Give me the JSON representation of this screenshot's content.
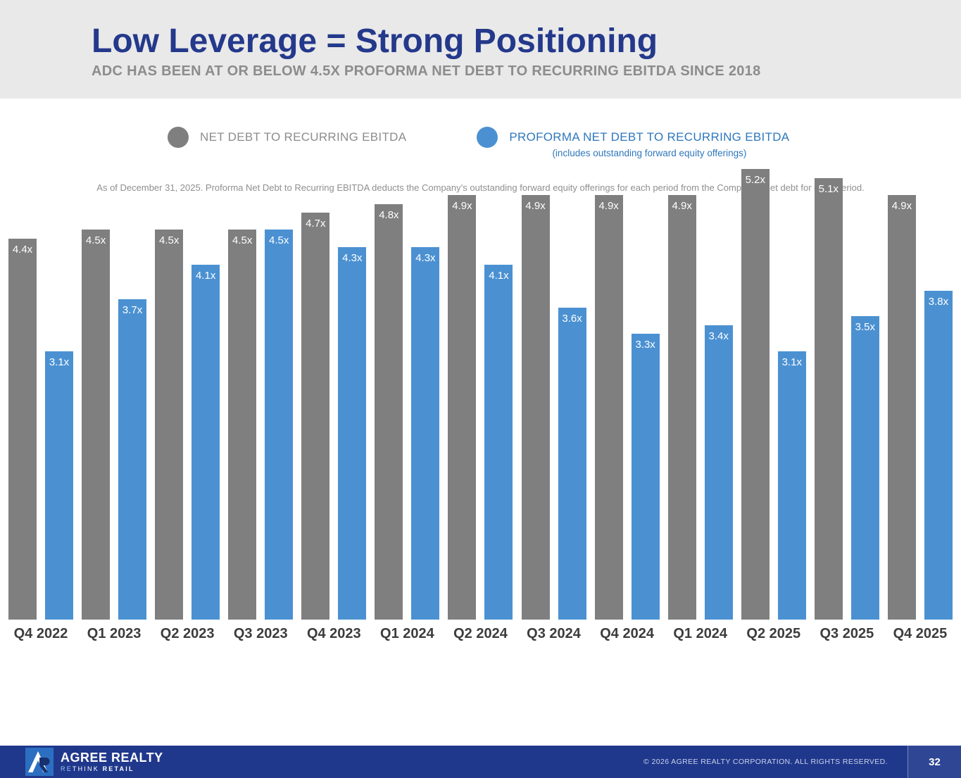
{
  "slide": {
    "title": "Low Leverage = Strong Positioning",
    "subtitle": "ADC HAS BEEN AT OR BELOW 4.5X PROFORMA NET DEBT TO RECURRING EBITDA SINCE 2018"
  },
  "chart_data": {
    "type": "bar",
    "categories": [
      "Q4 2022",
      "Q1 2023",
      "Q2 2023",
      "Q3 2023",
      "Q4 2023",
      "Q1 2024",
      "Q2 2024",
      "Q3 2024",
      "Q4 2024",
      "Q1 2024",
      "Q2 2025",
      "Q3 2025",
      "Q4 2025"
    ],
    "series": [
      {
        "name": "NET DEBT TO RECURRING EBITDA",
        "color": "#7f7f7f",
        "values": [
          4.4,
          4.5,
          4.5,
          4.5,
          4.7,
          4.8,
          4.9,
          4.9,
          4.9,
          4.9,
          5.2,
          5.1,
          4.9
        ],
        "labels": [
          "4.4x",
          "4.5x",
          "4.5x",
          "4.5x",
          "4.7x",
          "4.8x",
          "4.9x",
          "4.9x",
          "4.9x",
          "4.9x",
          "5.2x",
          "5.1x",
          "4.9x"
        ]
      },
      {
        "name": "PROFORMA NET DEBT TO RECURRING EBITDA",
        "color": "#4b91d2",
        "values": [
          3.1,
          3.7,
          4.1,
          4.5,
          4.3,
          4.3,
          4.1,
          3.6,
          3.3,
          3.4,
          3.1,
          3.5,
          3.8
        ],
        "labels": [
          "3.1x",
          "3.7x",
          "4.1x",
          "4.5x",
          "4.3x",
          "4.3x",
          "4.1x",
          "3.6x",
          "3.3x",
          "3.4x",
          "3.1x",
          "3.5x",
          "3.8x"
        ]
      }
    ],
    "ylim": [
      0,
      5.5
    ],
    "grid": false,
    "value_labels": "inside-top",
    "legend_position": "bottom"
  },
  "legend": {
    "gray_label": "NET DEBT TO RECURRING EBITDA",
    "blue_label": "PROFORMA NET DEBT TO RECURRING EBITDA",
    "blue_sublabel": "(includes outstanding forward equity offerings)"
  },
  "footnote": "As of December 31, 2025. Proforma Net Debt to Recurring EBITDA deducts the Company’s outstanding forward equity offerings for each period from the Company’s net debt for each period.",
  "footer": {
    "brand_name": "AGREE REALTY",
    "tagline_re": "RE",
    "tagline_think": "THINK ",
    "tagline_retail": "RETAIL",
    "copyright": "© 2026 AGREE REALTY CORPORATION. ALL RIGHTS RESERVED.",
    "page_number": "32"
  },
  "colors": {
    "header_background": "#e9e9e9",
    "title_navy": "#24398b",
    "subtitle_gray": "#8c8c8c",
    "bar_gray": "#7f7f7f",
    "bar_blue": "#4b91d2",
    "legend_blue_text": "#2f77bc",
    "footer_navy": "#20388c",
    "logo_blue": "#2c6fc2"
  }
}
